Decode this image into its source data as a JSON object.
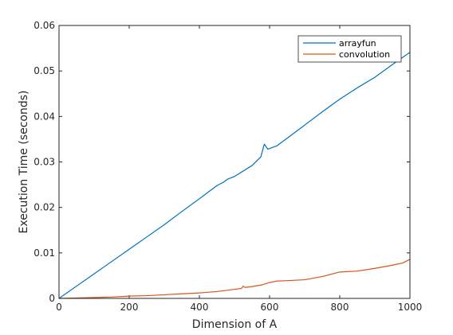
{
  "chart_data": {
    "type": "line",
    "title": "",
    "xlabel": "Dimension of A",
    "ylabel": "Execution Time (seconds)",
    "xlim": [
      0,
      1000
    ],
    "ylim": [
      0,
      0.06
    ],
    "xticks": [
      0,
      200,
      400,
      600,
      800,
      1000
    ],
    "yticks": [
      0,
      0.01,
      0.02,
      0.03,
      0.04,
      0.05,
      0.06
    ],
    "xtick_labels": [
      "0",
      "200",
      "400",
      "600",
      "800",
      "1000"
    ],
    "ytick_labels": [
      "0",
      "0.01",
      "0.02",
      "0.03",
      "0.04",
      "0.05",
      "0.06"
    ],
    "grid": false,
    "box": true,
    "legend_position": "top-right",
    "series": [
      {
        "name": "arrayfun",
        "color": "#0072BD",
        "x": [
          0,
          50,
          100,
          150,
          200,
          250,
          300,
          350,
          400,
          450,
          470,
          480,
          500,
          550,
          575,
          585,
          595,
          620,
          650,
          700,
          750,
          800,
          850,
          900,
          950,
          1000
        ],
        "y": [
          0,
          0.0027,
          0.0054,
          0.0081,
          0.0108,
          0.0135,
          0.0162,
          0.0191,
          0.0219,
          0.0248,
          0.0256,
          0.0262,
          0.0268,
          0.0292,
          0.0311,
          0.0339,
          0.0328,
          0.0335,
          0.0352,
          0.0381,
          0.041,
          0.0438,
          0.0463,
          0.0486,
          0.0514,
          0.0541
        ]
      },
      {
        "name": "convolution",
        "color": "#D95319",
        "x": [
          0,
          50,
          100,
          150,
          200,
          250,
          300,
          350,
          400,
          450,
          500,
          520,
          525,
          530,
          550,
          580,
          600,
          620,
          650,
          700,
          750,
          800,
          850,
          900,
          950,
          980,
          1000
        ],
        "y": [
          0,
          0.0001,
          0.0002,
          0.0003,
          0.0005,
          0.0006,
          0.0008,
          0.001,
          0.0012,
          0.0015,
          0.002,
          0.0022,
          0.0027,
          0.0024,
          0.0026,
          0.003,
          0.0035,
          0.0038,
          0.0039,
          0.0041,
          0.0048,
          0.0058,
          0.006,
          0.0066,
          0.0073,
          0.0078,
          0.0086
        ]
      }
    ]
  }
}
